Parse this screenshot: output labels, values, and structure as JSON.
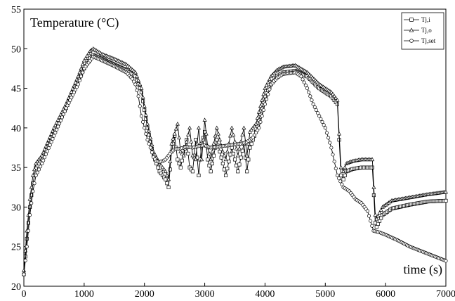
{
  "chart_data": {
    "type": "line",
    "xlabel": "time (s)",
    "ylabel": "Temperature (°C)",
    "xlim": [
      0,
      7000
    ],
    "ylim": [
      20,
      55
    ],
    "x_ticks": [
      0,
      1000,
      2000,
      3000,
      4000,
      5000,
      6000,
      7000
    ],
    "y_ticks": [
      20,
      25,
      30,
      35,
      40,
      45,
      50,
      55
    ],
    "grid": false,
    "legend_position": "top-right",
    "series": [
      {
        "name": "Tj,i",
        "marker": "square",
        "points": [
          [
            0,
            21.5
          ],
          [
            50,
            26
          ],
          [
            100,
            30
          ],
          [
            150,
            33
          ],
          [
            200,
            35
          ],
          [
            300,
            36
          ],
          [
            500,
            39.5
          ],
          [
            700,
            42.5
          ],
          [
            900,
            46
          ],
          [
            1000,
            47.5
          ],
          [
            1100,
            48.8
          ],
          [
            1150,
            49.2
          ],
          [
            1300,
            48.7
          ],
          [
            1500,
            48
          ],
          [
            1700,
            47.3
          ],
          [
            1850,
            46.5
          ],
          [
            1950,
            44.5
          ],
          [
            2050,
            40
          ],
          [
            2150,
            36.5
          ],
          [
            2250,
            34.5
          ],
          [
            2350,
            33.5
          ],
          [
            2400,
            32.5
          ],
          [
            2450,
            37
          ],
          [
            2500,
            39
          ],
          [
            2550,
            36
          ],
          [
            2600,
            35
          ],
          [
            2700,
            38.5
          ],
          [
            2750,
            35
          ],
          [
            2800,
            34.5
          ],
          [
            2850,
            38.5
          ],
          [
            2900,
            34
          ],
          [
            2950,
            38
          ],
          [
            3000,
            39.5
          ],
          [
            3050,
            36
          ],
          [
            3100,
            34.5
          ],
          [
            3200,
            38.5
          ],
          [
            3300,
            35.5
          ],
          [
            3350,
            34
          ],
          [
            3450,
            37.5
          ],
          [
            3550,
            34.5
          ],
          [
            3650,
            38
          ],
          [
            3700,
            34.5
          ],
          [
            3750,
            37.5
          ],
          [
            3800,
            38.5
          ],
          [
            3850,
            39.5
          ],
          [
            3900,
            41
          ],
          [
            4000,
            44
          ],
          [
            4100,
            45.5
          ],
          [
            4200,
            46.5
          ],
          [
            4300,
            47
          ],
          [
            4500,
            47.2
          ],
          [
            4700,
            46.5
          ],
          [
            4900,
            45
          ],
          [
            5100,
            44
          ],
          [
            5200,
            43
          ],
          [
            5260,
            34
          ],
          [
            5300,
            33.5
          ],
          [
            5350,
            34.5
          ],
          [
            5450,
            34.8
          ],
          [
            5600,
            35
          ],
          [
            5780,
            35
          ],
          [
            5830,
            28
          ],
          [
            5850,
            27.5
          ],
          [
            5950,
            29
          ],
          [
            6100,
            29.8
          ],
          [
            6400,
            30.3
          ],
          [
            6700,
            30.7
          ],
          [
            7000,
            30.8
          ]
        ]
      },
      {
        "name": "Tj,o",
        "marker": "triangle",
        "points": [
          [
            0,
            22
          ],
          [
            50,
            27
          ],
          [
            100,
            31
          ],
          [
            150,
            34
          ],
          [
            200,
            35.5
          ],
          [
            300,
            36.5
          ],
          [
            500,
            40
          ],
          [
            700,
            43
          ],
          [
            900,
            46.5
          ],
          [
            1000,
            48.5
          ],
          [
            1100,
            49.7
          ],
          [
            1150,
            50
          ],
          [
            1300,
            49.3
          ],
          [
            1500,
            48.7
          ],
          [
            1700,
            48
          ],
          [
            1850,
            47
          ],
          [
            1950,
            45
          ],
          [
            2050,
            40.5
          ],
          [
            2150,
            37
          ],
          [
            2250,
            35.5
          ],
          [
            2350,
            34.5
          ],
          [
            2400,
            33.5
          ],
          [
            2450,
            38
          ],
          [
            2550,
            40.5
          ],
          [
            2600,
            37
          ],
          [
            2650,
            36.5
          ],
          [
            2750,
            40
          ],
          [
            2800,
            36.5
          ],
          [
            2850,
            36
          ],
          [
            2900,
            40
          ],
          [
            2950,
            36
          ],
          [
            3000,
            41
          ],
          [
            3050,
            37.5
          ],
          [
            3100,
            36
          ],
          [
            3200,
            40
          ],
          [
            3300,
            37
          ],
          [
            3350,
            36
          ],
          [
            3450,
            40
          ],
          [
            3550,
            36.5
          ],
          [
            3650,
            40
          ],
          [
            3700,
            36.5
          ],
          [
            3750,
            39.5
          ],
          [
            3800,
            40
          ],
          [
            3850,
            40.5
          ],
          [
            3900,
            42
          ],
          [
            4000,
            45
          ],
          [
            4100,
            46.5
          ],
          [
            4200,
            47.3
          ],
          [
            4300,
            47.7
          ],
          [
            4500,
            47.9
          ],
          [
            4700,
            47
          ],
          [
            4900,
            45.5
          ],
          [
            5100,
            44.5
          ],
          [
            5200,
            43.5
          ],
          [
            5260,
            35
          ],
          [
            5300,
            34.5
          ],
          [
            5350,
            35.5
          ],
          [
            5450,
            35.8
          ],
          [
            5600,
            36
          ],
          [
            5780,
            36
          ],
          [
            5830,
            29
          ],
          [
            5850,
            28.5
          ],
          [
            5950,
            30
          ],
          [
            6100,
            30.8
          ],
          [
            6400,
            31.2
          ],
          [
            6700,
            31.6
          ],
          [
            7000,
            31.9
          ]
        ]
      },
      {
        "name": "Tj,set",
        "marker": "circle",
        "points": [
          [
            0,
            21.5
          ],
          [
            50,
            25
          ],
          [
            100,
            29
          ],
          [
            150,
            32
          ],
          [
            200,
            34
          ],
          [
            300,
            35.5
          ],
          [
            500,
            39
          ],
          [
            700,
            42.5
          ],
          [
            900,
            45.5
          ],
          [
            1000,
            47.5
          ],
          [
            1100,
            48.5
          ],
          [
            1150,
            49
          ],
          [
            1300,
            48.5
          ],
          [
            1500,
            47.8
          ],
          [
            1700,
            47
          ],
          [
            1800,
            46.2
          ],
          [
            1850,
            45.5
          ],
          [
            1900,
            44
          ],
          [
            1950,
            41.5
          ],
          [
            2000,
            40
          ],
          [
            2050,
            38.5
          ],
          [
            2100,
            37.5
          ],
          [
            2150,
            36.3
          ],
          [
            2200,
            35.8
          ],
          [
            2250,
            35.7
          ],
          [
            2300,
            35.8
          ],
          [
            2350,
            36
          ],
          [
            2400,
            36.5
          ],
          [
            2450,
            37
          ],
          [
            2500,
            37.3
          ],
          [
            2600,
            37.4
          ],
          [
            2700,
            37.6
          ],
          [
            2800,
            37.5
          ],
          [
            2900,
            37.7
          ],
          [
            3000,
            37.8
          ],
          [
            3100,
            37.5
          ],
          [
            3200,
            37.6
          ],
          [
            3300,
            37.7
          ],
          [
            3400,
            37.8
          ],
          [
            3500,
            37.9
          ],
          [
            3600,
            38
          ],
          [
            3700,
            38.2
          ],
          [
            3800,
            38.8
          ],
          [
            3900,
            40
          ],
          [
            4000,
            43
          ],
          [
            4100,
            45.5
          ],
          [
            4200,
            46.3
          ],
          [
            4300,
            46.8
          ],
          [
            4500,
            47
          ],
          [
            4600,
            46.5
          ],
          [
            4700,
            45
          ],
          [
            4800,
            43
          ],
          [
            4900,
            41.5
          ],
          [
            5000,
            40
          ],
          [
            5100,
            37.5
          ],
          [
            5200,
            34
          ],
          [
            5300,
            32.5
          ],
          [
            5400,
            32
          ],
          [
            5500,
            31
          ],
          [
            5600,
            30.5
          ],
          [
            5700,
            29.5
          ],
          [
            5800,
            27
          ],
          [
            5900,
            26.8
          ],
          [
            6000,
            26.5
          ],
          [
            6200,
            25.8
          ],
          [
            6400,
            25
          ],
          [
            6600,
            24.4
          ],
          [
            6800,
            23.8
          ],
          [
            7000,
            23.2
          ]
        ]
      }
    ]
  }
}
